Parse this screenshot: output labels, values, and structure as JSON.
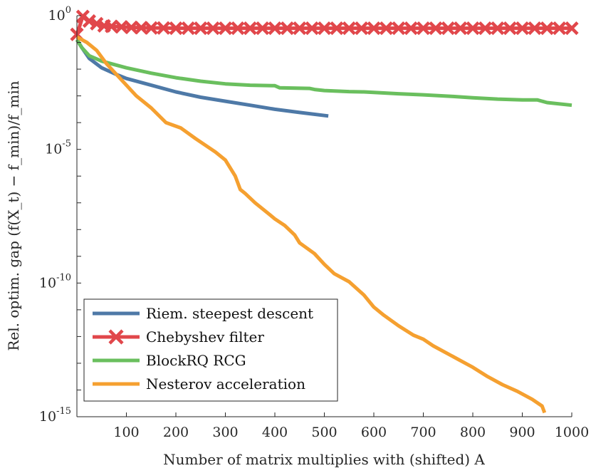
{
  "chart_data": {
    "type": "line",
    "title": "",
    "xlabel": "Number of matrix multiplies with (shifted) A",
    "ylabel": "Rel. optim. gap (f(X_t) − f_min)/f_min",
    "xlim": [
      0,
      1000
    ],
    "ylim_log10": [
      -15,
      0
    ],
    "x_ticks": [
      100,
      200,
      300,
      400,
      500,
      600,
      700,
      800,
      900,
      1000
    ],
    "y_ticks": [
      {
        "mantissa": "10",
        "exponent": "0",
        "log10": 0
      },
      {
        "mantissa": "10",
        "exponent": "-5",
        "log10": -5
      },
      {
        "mantissa": "10",
        "exponent": "-10",
        "log10": -10
      },
      {
        "mantissa": "10",
        "exponent": "-15",
        "log10": -15
      }
    ],
    "legend_position": "bottom-left",
    "series": [
      {
        "name": "Riem. steepest descent",
        "color": "#4e79a7",
        "marker": "none",
        "points_log10": [
          [
            0,
            -0.9
          ],
          [
            10,
            -1.2
          ],
          [
            25,
            -1.6
          ],
          [
            50,
            -1.95
          ],
          [
            80,
            -2.2
          ],
          [
            100,
            -2.35
          ],
          [
            150,
            -2.6
          ],
          [
            200,
            -2.85
          ],
          [
            250,
            -3.05
          ],
          [
            300,
            -3.2
          ],
          [
            350,
            -3.35
          ],
          [
            400,
            -3.5
          ],
          [
            450,
            -3.62
          ],
          [
            508,
            -3.75
          ]
        ]
      },
      {
        "name": "Chebyshev filter",
        "color": "#e1474b",
        "marker": "x",
        "points_log10": [
          [
            0,
            -0.7
          ],
          [
            12,
            -0.03
          ],
          [
            25,
            -0.2
          ],
          [
            40,
            -0.3
          ],
          [
            55,
            -0.38
          ],
          [
            70,
            -0.4
          ],
          [
            90,
            -0.42
          ],
          [
            110,
            -0.44
          ],
          [
            130,
            -0.45
          ],
          [
            150,
            -0.46
          ],
          [
            175,
            -0.46
          ],
          [
            200,
            -0.47
          ],
          [
            225,
            -0.47
          ],
          [
            250,
            -0.47
          ],
          [
            275,
            -0.47
          ],
          [
            300,
            -0.47
          ],
          [
            325,
            -0.47
          ],
          [
            350,
            -0.47
          ],
          [
            375,
            -0.47
          ],
          [
            400,
            -0.47
          ],
          [
            425,
            -0.47
          ],
          [
            450,
            -0.47
          ],
          [
            475,
            -0.47
          ],
          [
            500,
            -0.47
          ],
          [
            525,
            -0.47
          ],
          [
            550,
            -0.47
          ],
          [
            575,
            -0.47
          ],
          [
            600,
            -0.47
          ],
          [
            625,
            -0.47
          ],
          [
            650,
            -0.47
          ],
          [
            675,
            -0.47
          ],
          [
            700,
            -0.47
          ],
          [
            725,
            -0.47
          ],
          [
            750,
            -0.47
          ],
          [
            775,
            -0.47
          ],
          [
            800,
            -0.47
          ],
          [
            825,
            -0.47
          ],
          [
            850,
            -0.47
          ],
          [
            875,
            -0.47
          ],
          [
            900,
            -0.47
          ],
          [
            925,
            -0.47
          ],
          [
            950,
            -0.47
          ],
          [
            975,
            -0.47
          ],
          [
            1000,
            -0.47
          ]
        ]
      },
      {
        "name": "BlockRQ RCG",
        "color": "#6abf5e",
        "marker": "none",
        "points_log10": [
          [
            0,
            -0.9
          ],
          [
            10,
            -1.2
          ],
          [
            25,
            -1.5
          ],
          [
            50,
            -1.7
          ],
          [
            80,
            -1.85
          ],
          [
            100,
            -1.95
          ],
          [
            150,
            -2.15
          ],
          [
            200,
            -2.32
          ],
          [
            250,
            -2.45
          ],
          [
            300,
            -2.55
          ],
          [
            350,
            -2.6
          ],
          [
            400,
            -2.62
          ],
          [
            410,
            -2.7
          ],
          [
            470,
            -2.72
          ],
          [
            480,
            -2.76
          ],
          [
            500,
            -2.8
          ],
          [
            550,
            -2.84
          ],
          [
            580,
            -2.85
          ],
          [
            650,
            -2.92
          ],
          [
            700,
            -2.96
          ],
          [
            760,
            -3.02
          ],
          [
            800,
            -3.07
          ],
          [
            850,
            -3.12
          ],
          [
            900,
            -3.15
          ],
          [
            930,
            -3.15
          ],
          [
            950,
            -3.25
          ],
          [
            1000,
            -3.35
          ]
        ]
      },
      {
        "name": "Nesterov acceleration",
        "color": "#f5a030",
        "marker": "none",
        "points_log10": [
          [
            0,
            -0.8
          ],
          [
            20,
            -1.0
          ],
          [
            40,
            -1.3
          ],
          [
            60,
            -1.8
          ],
          [
            80,
            -2.2
          ],
          [
            100,
            -2.6
          ],
          [
            120,
            -3.0
          ],
          [
            150,
            -3.45
          ],
          [
            180,
            -4.0
          ],
          [
            210,
            -4.2
          ],
          [
            240,
            -4.6
          ],
          [
            280,
            -5.1
          ],
          [
            300,
            -5.4
          ],
          [
            320,
            -6.0
          ],
          [
            330,
            -6.5
          ],
          [
            340,
            -6.65
          ],
          [
            360,
            -7.0
          ],
          [
            390,
            -7.45
          ],
          [
            400,
            -7.6
          ],
          [
            420,
            -7.85
          ],
          [
            440,
            -8.2
          ],
          [
            450,
            -8.5
          ],
          [
            480,
            -8.9
          ],
          [
            500,
            -9.3
          ],
          [
            520,
            -9.65
          ],
          [
            550,
            -9.95
          ],
          [
            580,
            -10.45
          ],
          [
            600,
            -10.9
          ],
          [
            620,
            -11.2
          ],
          [
            650,
            -11.6
          ],
          [
            680,
            -11.95
          ],
          [
            700,
            -12.1
          ],
          [
            720,
            -12.35
          ],
          [
            750,
            -12.65
          ],
          [
            780,
            -12.95
          ],
          [
            800,
            -13.15
          ],
          [
            830,
            -13.5
          ],
          [
            860,
            -13.8
          ],
          [
            890,
            -14.05
          ],
          [
            920,
            -14.35
          ],
          [
            940,
            -14.6
          ],
          [
            945,
            -14.85
          ]
        ]
      }
    ]
  }
}
